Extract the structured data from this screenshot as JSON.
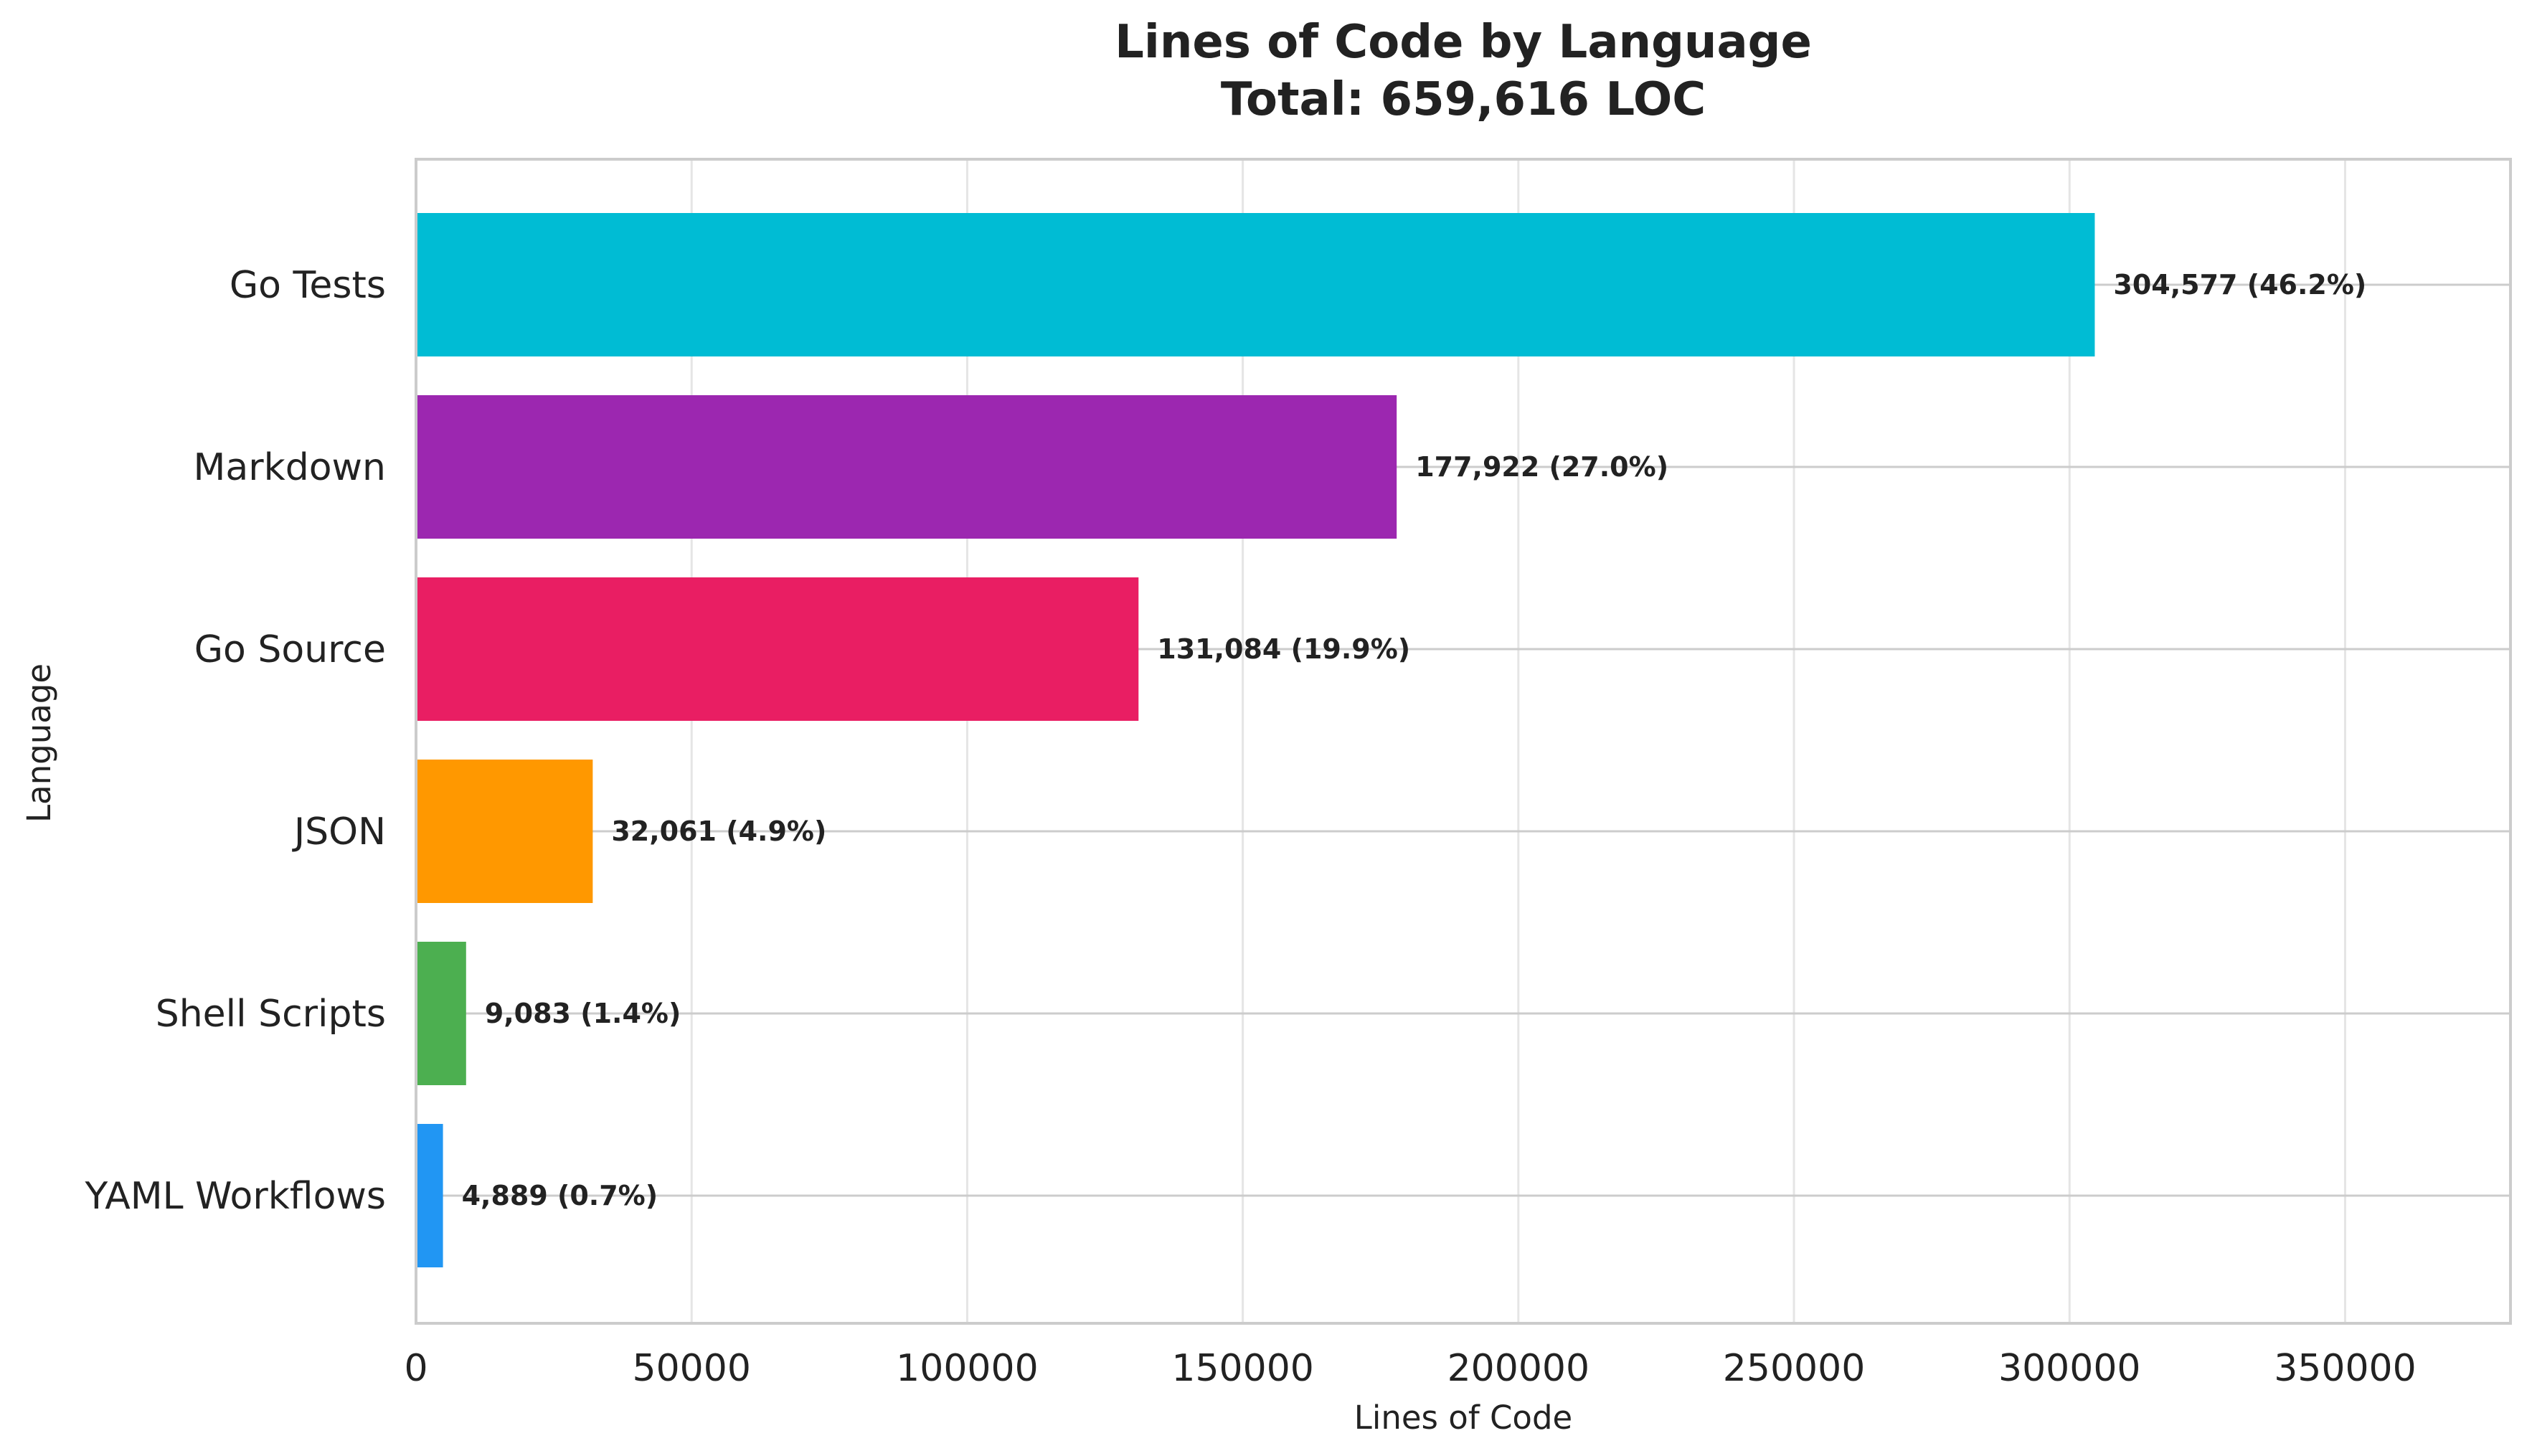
{
  "chart_data": {
    "type": "bar",
    "orientation": "horizontal",
    "title": "Lines of Code by Language",
    "subtitle": "Total: 659,616 LOC",
    "xlabel": "Lines of Code",
    "ylabel": "Language",
    "xlim": [
      0,
      380000
    ],
    "xticks": [
      0,
      50000,
      100000,
      150000,
      200000,
      250000,
      300000,
      350000
    ],
    "xtick_labels": [
      "0",
      "50000",
      "100000",
      "150000",
      "200000",
      "250000",
      "300000",
      "350000"
    ],
    "grid": true,
    "categories": [
      "Go Tests",
      "Markdown",
      "Go Source",
      "JSON",
      "Shell Scripts",
      "YAML Workflows"
    ],
    "values": [
      304577,
      177922,
      131084,
      32061,
      9083,
      4889
    ],
    "data_labels": [
      "304,577 (46.2%)",
      "177,922 (27.0%)",
      "131,084 (19.9%)",
      "32,061 (4.9%)",
      "9,083 (1.4%)",
      "4,889 (0.7%)"
    ],
    "colors": [
      "#00bcd4",
      "#9c27b0",
      "#e91e63",
      "#ff9800",
      "#4caf50",
      "#2196f3"
    ]
  }
}
